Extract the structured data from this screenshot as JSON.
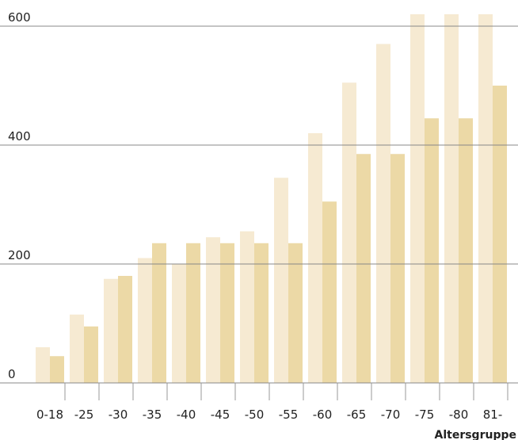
{
  "chart_data": {
    "type": "bar",
    "categories": [
      "0-18",
      "-25",
      "-30",
      "-35",
      "-40",
      "-45",
      "-50",
      "-55",
      "-60",
      "-65",
      "-70",
      "-75",
      "-80",
      "81-"
    ],
    "series": [
      {
        "values": [
          60,
          115,
          175,
          210,
          200,
          245,
          255,
          345,
          420,
          505,
          570,
          620,
          620,
          620
        ],
        "color": "#f6ead2"
      },
      {
        "values": [
          45,
          95,
          180,
          235,
          235,
          235,
          235,
          235,
          305,
          385,
          385,
          445,
          445,
          500
        ],
        "color": "#ecd9a6"
      }
    ],
    "y_ticks": [
      0,
      200,
      400,
      600
    ],
    "ylim": [
      0,
      620
    ],
    "xlabel": "Altersgruppe",
    "ylabel": "",
    "grid": true,
    "gridline_color": "#888888"
  }
}
